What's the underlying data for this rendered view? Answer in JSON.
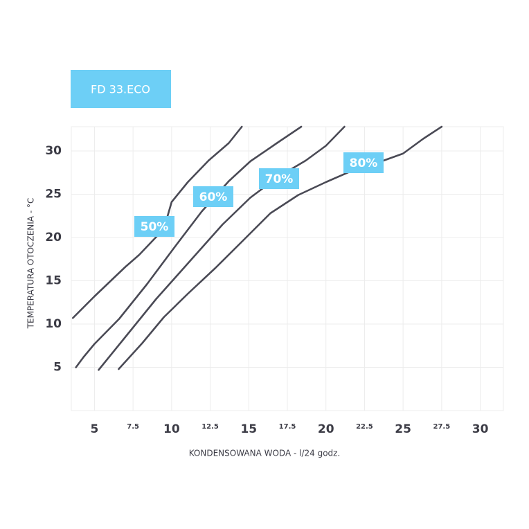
{
  "chart_data": {
    "type": "line",
    "title": "FD 33.ECO",
    "x_label": "KONDENSOWANA WODA - l/24 godz.",
    "y_label": "TEMPERATURA OTOCZENIA - °C",
    "xlim": [
      3.5,
      31.5
    ],
    "ylim": [
      0,
      32.8
    ],
    "xticks": [
      5,
      7.5,
      10,
      12.5,
      15,
      17.5,
      20,
      22.5,
      25,
      27.5,
      30
    ],
    "yticks": [
      5,
      10,
      15,
      20,
      25,
      30
    ],
    "grid": true,
    "color": "#4a4a55",
    "label_color": "#6dcff6",
    "series": [
      {
        "name": "50%",
        "x": [
          3.6,
          5,
          7,
          7.9,
          9.5,
          10,
          11.05,
          12.4,
          13.7,
          14.55
        ],
        "values": [
          10.7,
          13.2,
          16.6,
          18,
          21,
          24.1,
          26.4,
          28.9,
          30.9,
          32.8
        ]
      },
      {
        "name": "60%",
        "x": [
          3.8,
          4.3,
          5,
          6.6,
          8.4,
          10.2,
          11.95,
          13.7,
          15.1,
          16.9,
          18.4
        ],
        "values": [
          5,
          6.2,
          7.7,
          10.6,
          14.6,
          18.9,
          23,
          26.5,
          28.8,
          31,
          32.8
        ]
      },
      {
        "name": "70%",
        "x": [
          5.27,
          7,
          9,
          11.05,
          13.3,
          15.1,
          16.9,
          18.7,
          20,
          21.2
        ],
        "values": [
          4.7,
          8.5,
          12.9,
          17,
          21.5,
          24.6,
          27,
          28.9,
          30.6,
          32.8
        ]
      },
      {
        "name": "80%",
        "x": [
          6.57,
          8.1,
          9.5,
          11.05,
          12.85,
          14.6,
          16.4,
          18.2,
          20,
          21.8,
          23.6,
          25,
          26.3,
          27.5
        ],
        "values": [
          4.8,
          7.8,
          10.8,
          13.5,
          16.5,
          19.6,
          22.8,
          24.9,
          26.4,
          27.8,
          28.8,
          29.7,
          31.4,
          32.8
        ]
      }
    ]
  }
}
